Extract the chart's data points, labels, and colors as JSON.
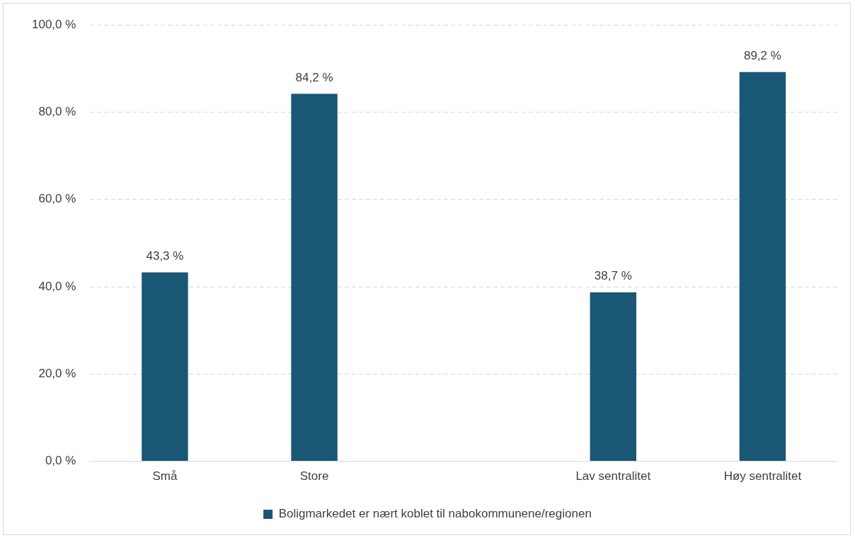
{
  "chart_data": {
    "type": "bar",
    "categories": [
      "Små",
      "Store",
      null,
      "Lav sentralitet",
      "Høy sentralitet"
    ],
    "series": [
      {
        "name": "Boligmarkedet er nært koblet til nabokommunene/regionen",
        "color": "#1a5775",
        "values": [
          43.3,
          84.2,
          null,
          38.7,
          89.2
        ],
        "value_labels": [
          "43,3 %",
          "84,2 %",
          null,
          "38,7 %",
          "89,2 %"
        ]
      }
    ],
    "ylim": [
      0,
      100
    ],
    "yticks": [
      {
        "value": 0,
        "label": "0,0 %"
      },
      {
        "value": 20,
        "label": "20,0 %"
      },
      {
        "value": 40,
        "label": "40,0 %"
      },
      {
        "value": 60,
        "label": "60,0 %"
      },
      {
        "value": 80,
        "label": "80,0 %"
      },
      {
        "value": 100,
        "label": "100,0 %"
      }
    ],
    "grid": "y",
    "line_style": "dashed",
    "legend": "bottom"
  }
}
